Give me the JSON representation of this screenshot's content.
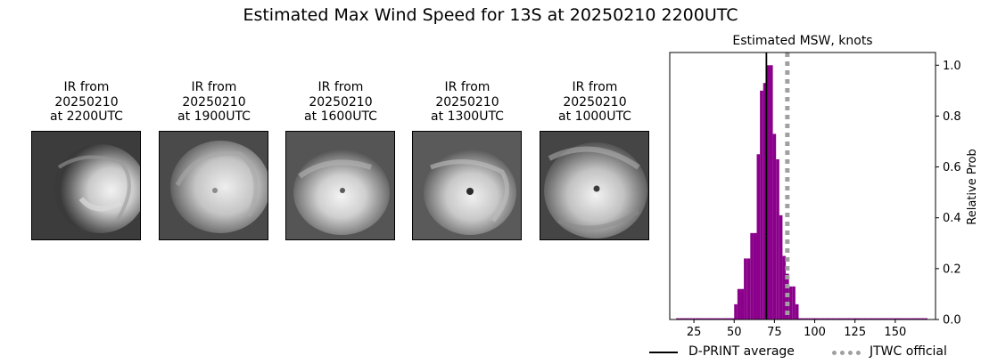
{
  "figure_title": "Estimated Max Wind Speed for 13S at 20250210 2200UTC",
  "panels": [
    {
      "l1": "IR from",
      "l2": "20250210",
      "l3": "at 2200UTC"
    },
    {
      "l1": "IR from",
      "l2": "20250210",
      "l3": "at 1900UTC"
    },
    {
      "l1": "IR from",
      "l2": "20250210",
      "l3": "at 1600UTC"
    },
    {
      "l1": "IR from",
      "l2": "20250210",
      "l3": "at 1300UTC"
    },
    {
      "l1": "IR from",
      "l2": "20250210",
      "l3": "at 1000UTC"
    }
  ],
  "legend": {
    "dprint": "D-PRINT average",
    "jtwc": "JTWC official"
  },
  "colors": {
    "bars": "#8b008b",
    "dprint": "#000000",
    "jtwc": "#a0a0a0"
  },
  "chart_data": {
    "type": "bar",
    "title": "Estimated MSW, knots",
    "xlabel": "",
    "ylabel": "Relative Prob",
    "xlim": [
      10,
      175
    ],
    "ylim": [
      0,
      1.05
    ],
    "xticks": [
      25,
      50,
      75,
      100,
      125,
      150
    ],
    "yticks": [
      0.0,
      0.2,
      0.4,
      0.6,
      0.8,
      1.0
    ],
    "yaxis_side": "right",
    "bin_width": 2,
    "bins": [
      {
        "x": 15,
        "y": 0.005
      },
      {
        "x": 17,
        "y": 0.005
      },
      {
        "x": 19,
        "y": 0.005
      },
      {
        "x": 21,
        "y": 0.005
      },
      {
        "x": 23,
        "y": 0.005
      },
      {
        "x": 25,
        "y": 0.005
      },
      {
        "x": 27,
        "y": 0.005
      },
      {
        "x": 29,
        "y": 0.005
      },
      {
        "x": 31,
        "y": 0.005
      },
      {
        "x": 33,
        "y": 0.005
      },
      {
        "x": 35,
        "y": 0.005
      },
      {
        "x": 37,
        "y": 0.005
      },
      {
        "x": 39,
        "y": 0.005
      },
      {
        "x": 41,
        "y": 0.005
      },
      {
        "x": 43,
        "y": 0.005
      },
      {
        "x": 45,
        "y": 0.005
      },
      {
        "x": 47,
        "y": 0.005
      },
      {
        "x": 49,
        "y": 0.005
      },
      {
        "x": 51,
        "y": 0.06
      },
      {
        "x": 53,
        "y": 0.12
      },
      {
        "x": 55,
        "y": 0.12
      },
      {
        "x": 57,
        "y": 0.24
      },
      {
        "x": 59,
        "y": 0.24
      },
      {
        "x": 61,
        "y": 0.34
      },
      {
        "x": 63,
        "y": 0.34
      },
      {
        "x": 65,
        "y": 0.65
      },
      {
        "x": 67,
        "y": 0.9
      },
      {
        "x": 69,
        "y": 0.93
      },
      {
        "x": 71,
        "y": 1.0
      },
      {
        "x": 73,
        "y": 1.0
      },
      {
        "x": 75,
        "y": 0.73
      },
      {
        "x": 77,
        "y": 0.63
      },
      {
        "x": 79,
        "y": 0.41
      },
      {
        "x": 81,
        "y": 0.25
      },
      {
        "x": 83,
        "y": 0.18
      },
      {
        "x": 85,
        "y": 0.13
      },
      {
        "x": 87,
        "y": 0.13
      },
      {
        "x": 89,
        "y": 0.06
      },
      {
        "x": 91,
        "y": 0.005
      },
      {
        "x": 93,
        "y": 0.005
      },
      {
        "x": 95,
        "y": 0.005
      },
      {
        "x": 97,
        "y": 0.005
      },
      {
        "x": 99,
        "y": 0.005
      },
      {
        "x": 101,
        "y": 0.005
      },
      {
        "x": 103,
        "y": 0.005
      },
      {
        "x": 105,
        "y": 0.005
      },
      {
        "x": 107,
        "y": 0.005
      },
      {
        "x": 109,
        "y": 0.005
      },
      {
        "x": 111,
        "y": 0.005
      },
      {
        "x": 113,
        "y": 0.005
      },
      {
        "x": 115,
        "y": 0.005
      },
      {
        "x": 117,
        "y": 0.005
      },
      {
        "x": 119,
        "y": 0.005
      },
      {
        "x": 121,
        "y": 0.005
      },
      {
        "x": 123,
        "y": 0.005
      },
      {
        "x": 125,
        "y": 0.005
      },
      {
        "x": 127,
        "y": 0.005
      },
      {
        "x": 129,
        "y": 0.005
      },
      {
        "x": 131,
        "y": 0.005
      },
      {
        "x": 133,
        "y": 0.005
      },
      {
        "x": 135,
        "y": 0.005
      },
      {
        "x": 137,
        "y": 0.005
      },
      {
        "x": 139,
        "y": 0.005
      },
      {
        "x": 141,
        "y": 0.005
      },
      {
        "x": 143,
        "y": 0.005
      },
      {
        "x": 145,
        "y": 0.005
      },
      {
        "x": 147,
        "y": 0.005
      },
      {
        "x": 149,
        "y": 0.005
      },
      {
        "x": 151,
        "y": 0.005
      },
      {
        "x": 153,
        "y": 0.005
      },
      {
        "x": 155,
        "y": 0.005
      },
      {
        "x": 157,
        "y": 0.005
      },
      {
        "x": 159,
        "y": 0.005
      },
      {
        "x": 161,
        "y": 0.005
      },
      {
        "x": 163,
        "y": 0.005
      },
      {
        "x": 165,
        "y": 0.005
      },
      {
        "x": 167,
        "y": 0.005
      },
      {
        "x": 169,
        "y": 0.005
      }
    ],
    "dprint_average": 70,
    "jtwc_official": 83
  }
}
